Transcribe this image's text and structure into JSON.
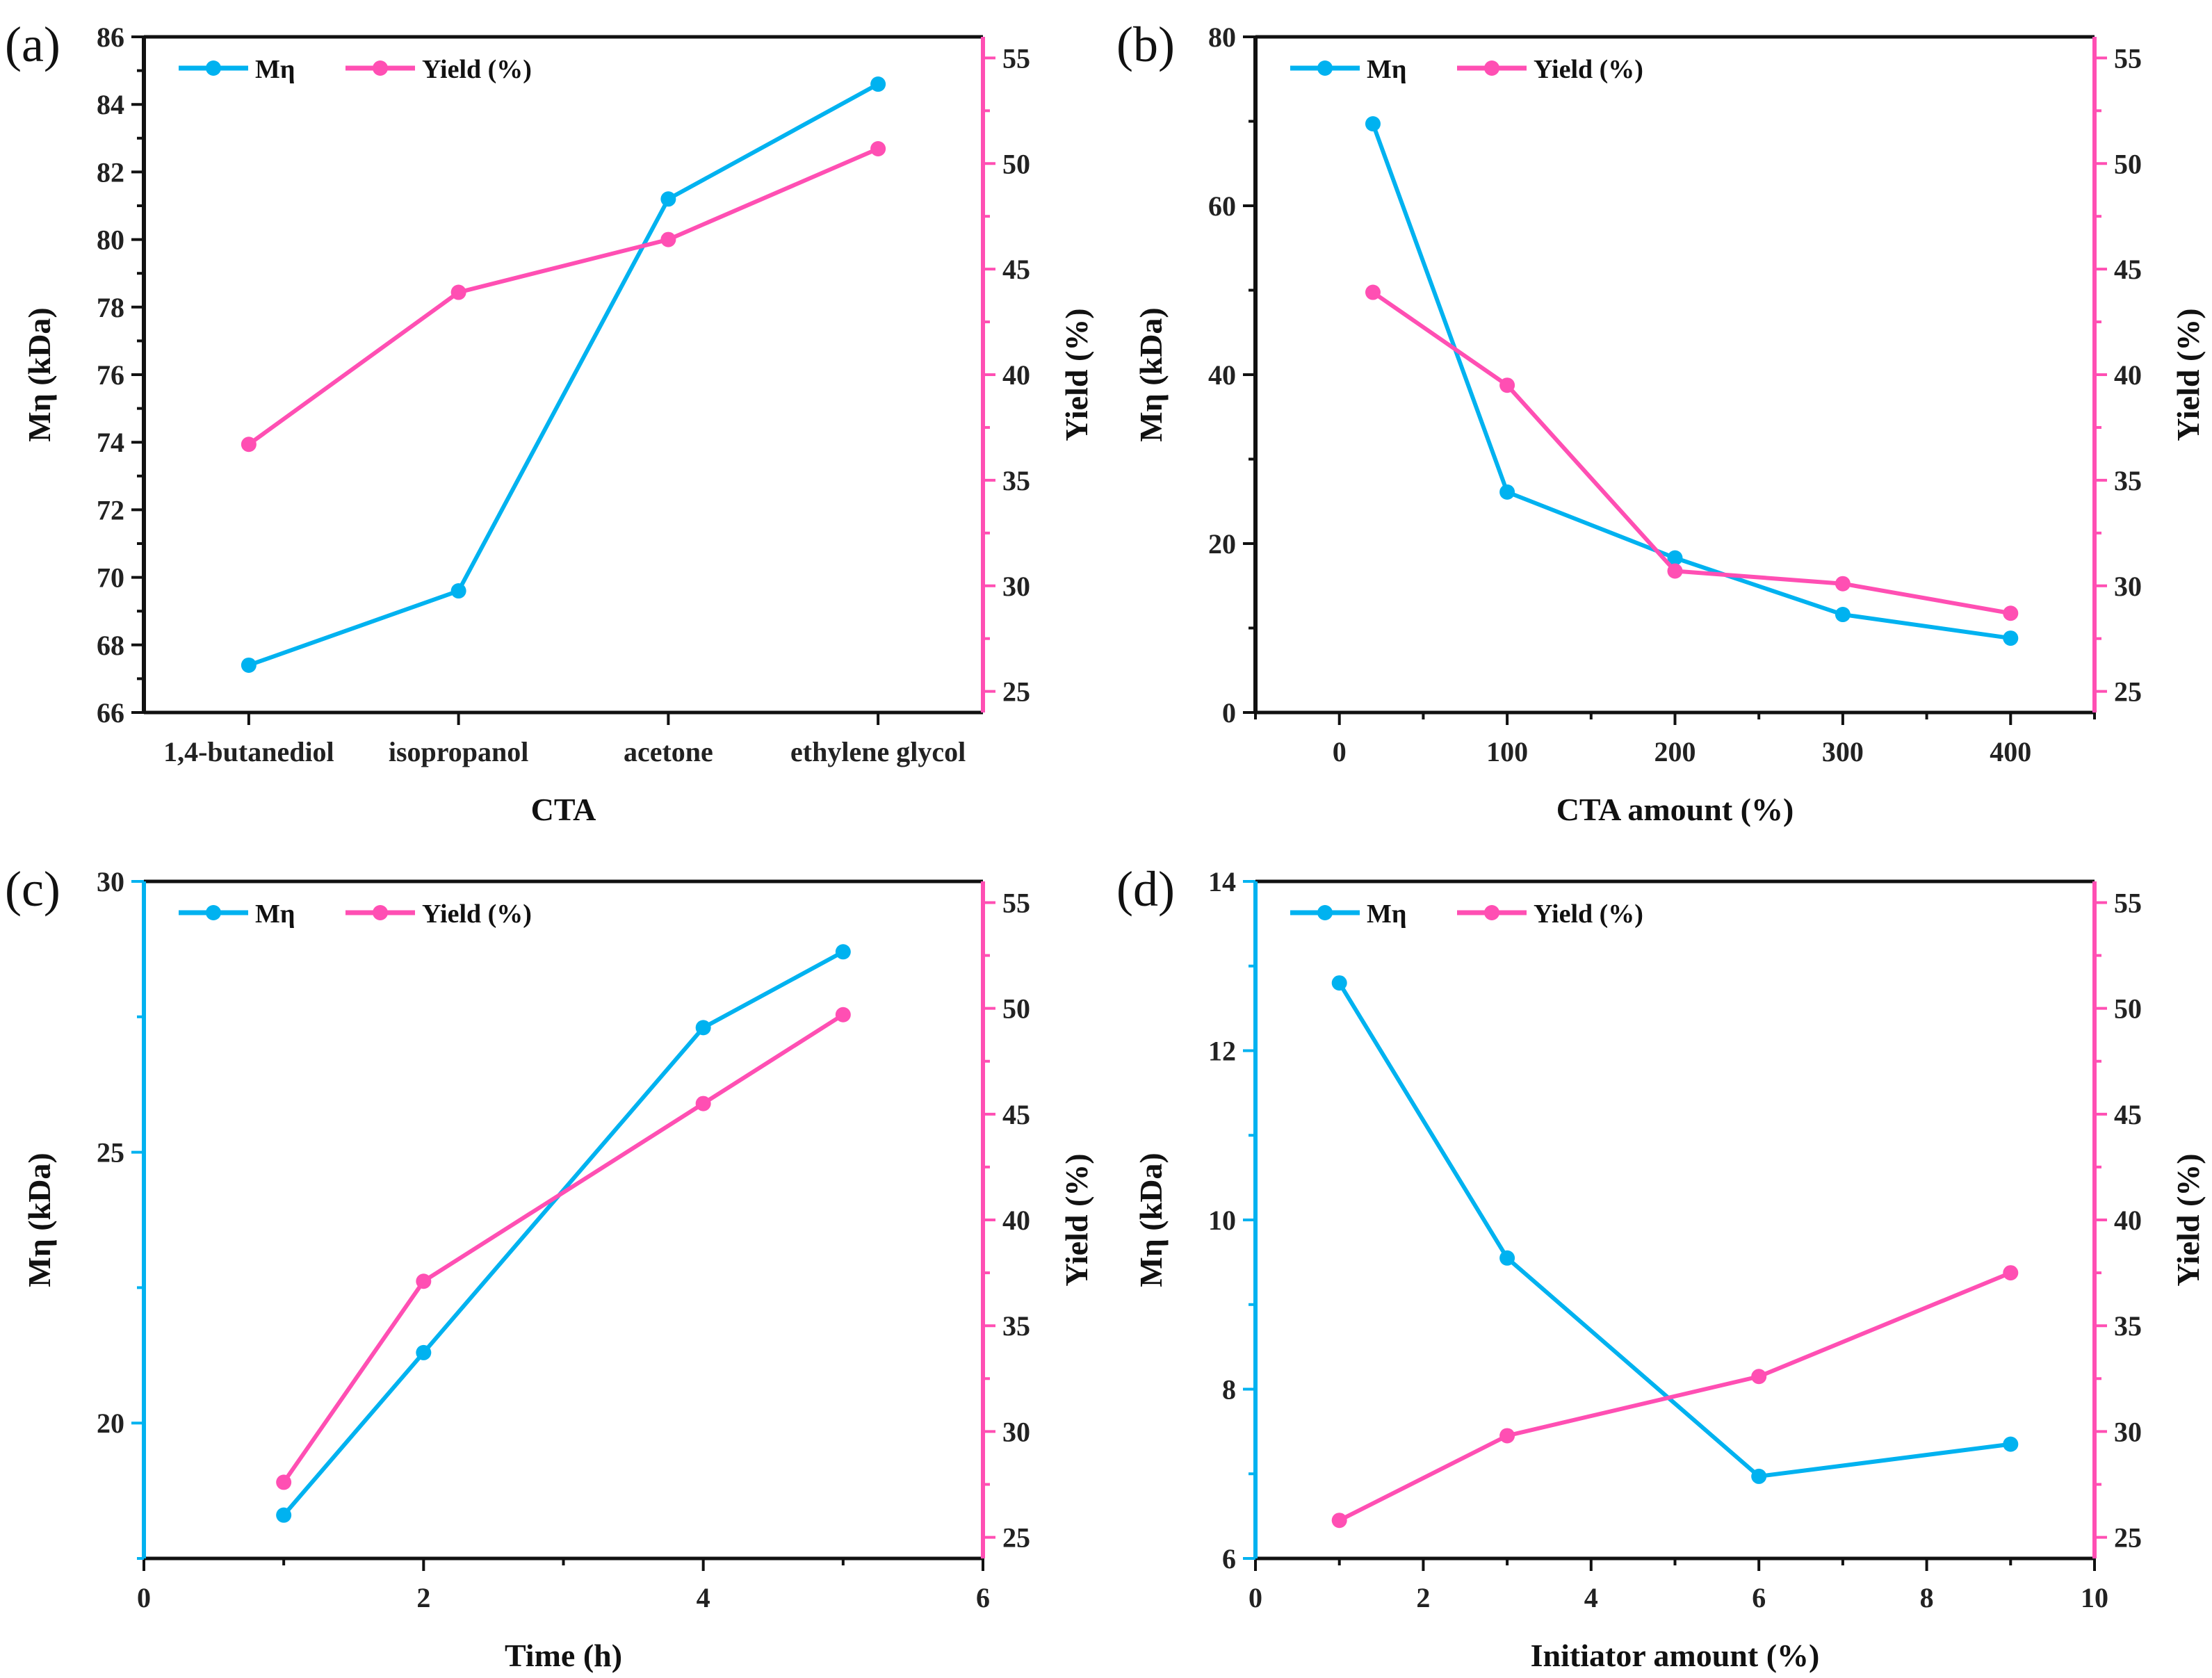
{
  "colors": {
    "mn": "#00B2F0",
    "yield": "#FF4FB3",
    "axis": "#111111"
  },
  "chart_data": [
    {
      "panel": "(a)",
      "type": "line",
      "xlabel": "CTA",
      "ylabel": "Mη (kDa)",
      "y2label": "Yield (%)",
      "categories": [
        "1,4-butanediol",
        "isopropanol",
        "acetone",
        "ethylene glycol"
      ],
      "ylim": [
        66,
        86
      ],
      "yticks": [
        "66",
        "68",
        "70",
        "72",
        "74",
        "76",
        "78",
        "80",
        "82",
        "84",
        "86"
      ],
      "y2lim": [
        24,
        56
      ],
      "y2ticks": [
        "25",
        "30",
        "35",
        "40",
        "45",
        "50",
        "55"
      ],
      "legend": [
        "Mη",
        "Yield (%)"
      ],
      "legend_position": "top-left",
      "series": [
        {
          "name": "Mη",
          "axis": "left",
          "values": [
            67.4,
            69.6,
            81.2,
            84.6
          ]
        },
        {
          "name": "Yield (%)",
          "axis": "right",
          "values": [
            36.7,
            43.9,
            46.4,
            50.7
          ]
        }
      ]
    },
    {
      "panel": "(b)",
      "type": "line",
      "xlabel": "CTA amount (%)",
      "ylabel": "Mη (kDa)",
      "y2label": "Yield (%)",
      "xlim": [
        -50,
        450
      ],
      "xticks": [
        "0",
        "100",
        "200",
        "300",
        "400"
      ],
      "ylim": [
        0,
        80
      ],
      "yticks": [
        "0",
        "20",
        "40",
        "60",
        "80"
      ],
      "y2lim": [
        24,
        56
      ],
      "y2ticks": [
        "25",
        "30",
        "35",
        "40",
        "45",
        "50",
        "55"
      ],
      "legend": [
        "Mη",
        "Yield (%)"
      ],
      "legend_position": "top-left",
      "series": [
        {
          "name": "Mη",
          "axis": "left",
          "x": [
            20,
            100,
            200,
            300,
            400
          ],
          "values": [
            69.7,
            26.1,
            18.3,
            11.6,
            8.8
          ]
        },
        {
          "name": "Yield (%)",
          "axis": "right",
          "x": [
            20,
            100,
            200,
            300,
            400
          ],
          "values": [
            43.9,
            39.5,
            30.7,
            30.1,
            28.7
          ]
        }
      ]
    },
    {
      "panel": "(c)",
      "type": "line",
      "xlabel": "Time (h)",
      "ylabel": "Mη (kDa)",
      "y2label": "Yield (%)",
      "xlim": [
        0,
        6
      ],
      "xticks": [
        "0",
        "2",
        "4",
        "6"
      ],
      "ylim": [
        17.5,
        30
      ],
      "yticks": [
        "20",
        "25",
        "30"
      ],
      "y2lim": [
        24,
        56
      ],
      "y2ticks": [
        "25",
        "30",
        "35",
        "40",
        "45",
        "50",
        "55"
      ],
      "legend": [
        "Mη",
        "Yield (%)"
      ],
      "legend_position": "top-left",
      "series": [
        {
          "name": "Mη",
          "axis": "left",
          "x": [
            1,
            2,
            4,
            5
          ],
          "values": [
            18.3,
            21.3,
            27.3,
            28.7
          ]
        },
        {
          "name": "Yield (%)",
          "axis": "right",
          "x": [
            1,
            2,
            4,
            5
          ],
          "values": [
            27.6,
            37.1,
            45.5,
            49.7
          ]
        }
      ]
    },
    {
      "panel": "(d)",
      "type": "line",
      "xlabel": "Initiator amount (%)",
      "ylabel": "Mη (kDa)",
      "y2label": "Yield (%)",
      "xlim": [
        0,
        10
      ],
      "xticks": [
        "0",
        "2",
        "4",
        "6",
        "8",
        "10"
      ],
      "ylim": [
        6,
        14
      ],
      "yticks": [
        "6",
        "8",
        "10",
        "12",
        "14"
      ],
      "y2lim": [
        24,
        56
      ],
      "y2ticks": [
        "25",
        "30",
        "35",
        "40",
        "45",
        "50",
        "55"
      ],
      "legend": [
        "Mη",
        "Yield (%)"
      ],
      "legend_position": "top-left",
      "series": [
        {
          "name": "Mη",
          "axis": "left",
          "x": [
            1,
            3,
            6,
            9
          ],
          "values": [
            12.8,
            9.55,
            6.97,
            7.35
          ]
        },
        {
          "name": "Yield (%)",
          "axis": "right",
          "x": [
            1,
            3,
            6,
            9
          ],
          "values": [
            25.8,
            29.8,
            32.6,
            37.5
          ]
        }
      ]
    }
  ]
}
